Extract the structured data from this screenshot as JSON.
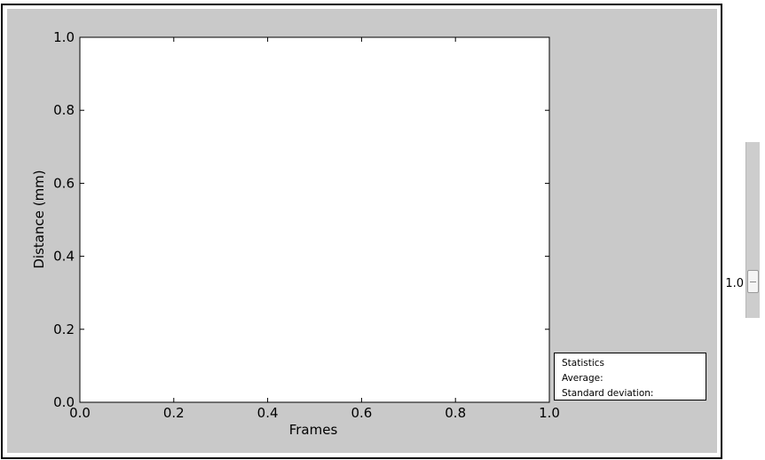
{
  "chart_data": {
    "type": "line",
    "title": "",
    "xlabel": "Frames",
    "ylabel": "Distance (mm)",
    "xlim": [
      0.0,
      1.0
    ],
    "ylim": [
      0.0,
      1.0
    ],
    "x_ticks": [
      "0.0",
      "0.2",
      "0.4",
      "0.6",
      "0.8",
      "1.0"
    ],
    "y_ticks": [
      "0.0",
      "0.2",
      "0.4",
      "0.6",
      "0.8",
      "1.0"
    ],
    "grid": false,
    "series": []
  },
  "statistics": {
    "heading": "Statistics",
    "average_label": "Average:",
    "std_label": "Standard deviation:"
  },
  "slider": {
    "value_text": "1.0",
    "value": 1.0
  },
  "colors": {
    "figure_background": "#c9c9c9",
    "axes_background": "#ffffff",
    "axes_edge": "#000000"
  }
}
